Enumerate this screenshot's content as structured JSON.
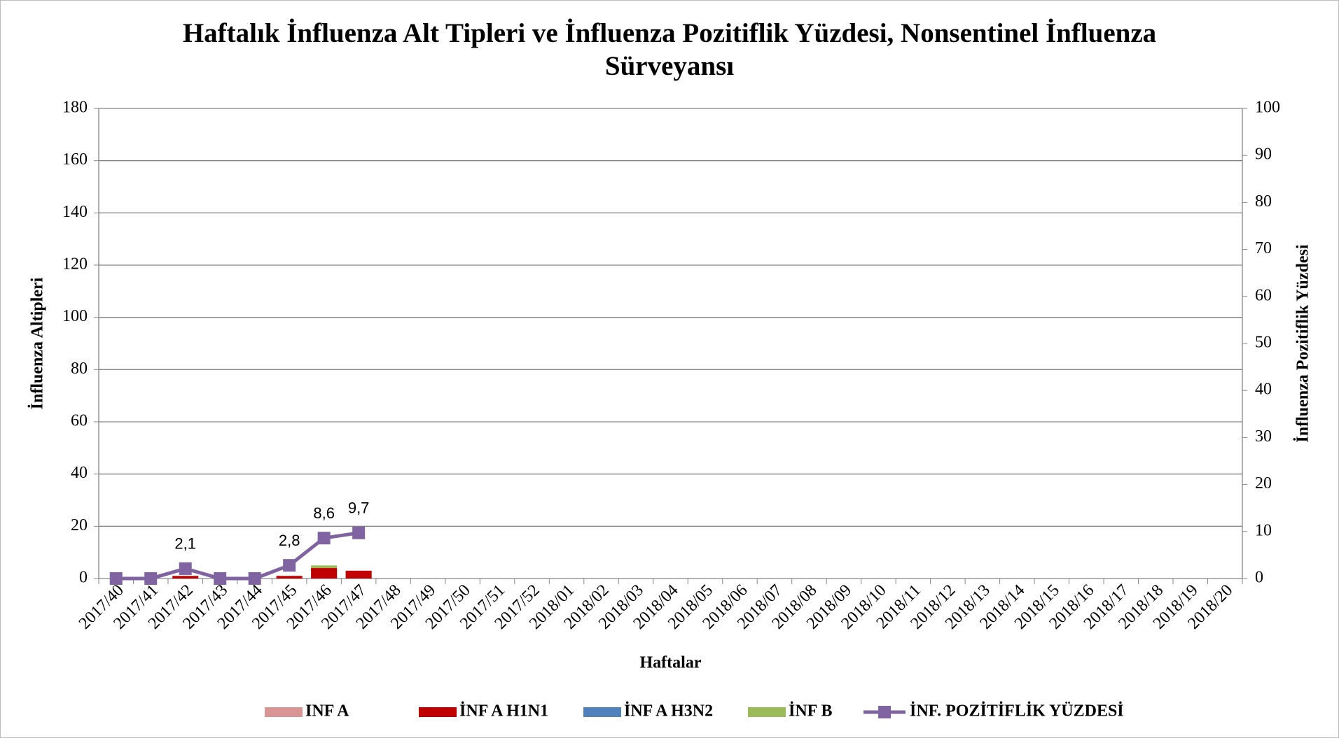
{
  "chart_data": {
    "type": "bar",
    "title": "Haftalık İnfluenza Alt Tipleri ve İnfluenza Pozitiflik Yüzdesi, Nonsentinel İnfluenza Sürveyansı",
    "x_label": "Haftalar",
    "y_label": "İnfluenza Altipleri",
    "y2_label": "İnfluenza Pozitiflik Yüzdesi",
    "categories": [
      "2017/40",
      "2017/41",
      "2017/42",
      "2017/43",
      "2017/44",
      "2017/45",
      "2017/46",
      "2017/47",
      "2017/48",
      "2017/49",
      "2017/50",
      "2017/51",
      "2017/52",
      "2018/01",
      "2018/02",
      "2018/03",
      "2018/04",
      "2018/05",
      "2018/06",
      "2018/07",
      "2018/08",
      "2018/09",
      "2018/10",
      "2018/11",
      "2018/12",
      "2018/13",
      "2018/14",
      "2018/15",
      "2018/16",
      "2018/17",
      "2018/18",
      "2018/19",
      "2018/20"
    ],
    "stacked": true,
    "series": [
      {
        "name": "INF A",
        "color": "#d99594",
        "values": [
          0,
          0,
          0,
          0,
          0,
          0,
          0,
          0,
          null,
          null,
          null,
          null,
          null,
          null,
          null,
          null,
          null,
          null,
          null,
          null,
          null,
          null,
          null,
          null,
          null,
          null,
          null,
          null,
          null,
          null,
          null,
          null,
          null
        ]
      },
      {
        "name": "İNF A H1N1",
        "color": "#c00000",
        "values": [
          0,
          0,
          1,
          0,
          0,
          1,
          4,
          3,
          null,
          null,
          null,
          null,
          null,
          null,
          null,
          null,
          null,
          null,
          null,
          null,
          null,
          null,
          null,
          null,
          null,
          null,
          null,
          null,
          null,
          null,
          null,
          null,
          null
        ]
      },
      {
        "name": "İNF A H3N2",
        "color": "#4f81bd",
        "values": [
          0,
          0,
          0,
          0,
          0,
          0,
          0,
          0,
          null,
          null,
          null,
          null,
          null,
          null,
          null,
          null,
          null,
          null,
          null,
          null,
          null,
          null,
          null,
          null,
          null,
          null,
          null,
          null,
          null,
          null,
          null,
          null,
          null
        ]
      },
      {
        "name": "İNF B",
        "color": "#9bbb59",
        "values": [
          0,
          0,
          0,
          0,
          0,
          0,
          1,
          0,
          null,
          null,
          null,
          null,
          null,
          null,
          null,
          null,
          null,
          null,
          null,
          null,
          null,
          null,
          null,
          null,
          null,
          null,
          null,
          null,
          null,
          null,
          null,
          null,
          null
        ]
      },
      {
        "name": "İNF. POZİTİFLİK YÜZDESİ",
        "color": "#8064a2",
        "type": "line",
        "axis": "y2",
        "values": [
          0,
          0,
          2.1,
          0,
          0,
          2.8,
          8.6,
          9.7,
          null,
          null,
          null,
          null,
          null,
          null,
          null,
          null,
          null,
          null,
          null,
          null,
          null,
          null,
          null,
          null,
          null,
          null,
          null,
          null,
          null,
          null,
          null,
          null,
          null
        ],
        "value_labels": [
          null,
          null,
          "2,1",
          null,
          null,
          "2,8",
          "8,6",
          "9,7",
          null,
          null,
          null,
          null,
          null,
          null,
          null,
          null,
          null,
          null,
          null,
          null,
          null,
          null,
          null,
          null,
          null,
          null,
          null,
          null,
          null,
          null,
          null,
          null,
          null
        ]
      }
    ],
    "ylim": [
      0,
      180
    ],
    "yticks": [
      0,
      20,
      40,
      60,
      80,
      100,
      120,
      140,
      160,
      180
    ],
    "y2lim": [
      0,
      100
    ],
    "y2ticks": [
      0,
      10,
      20,
      30,
      40,
      50,
      60,
      70,
      80,
      90,
      100
    ],
    "grid": true,
    "legend": "bottom"
  }
}
